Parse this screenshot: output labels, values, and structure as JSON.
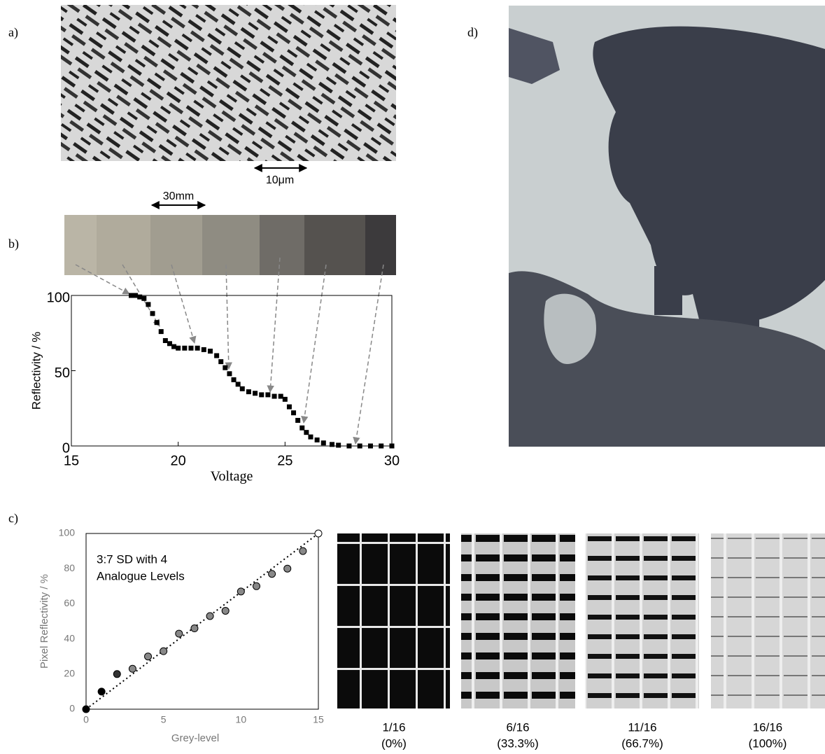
{
  "panel_labels": {
    "a": "a)",
    "b": "b)",
    "c": "c)",
    "d": "d)"
  },
  "scale_bars": {
    "image_a": "10μm",
    "strip_b": "30mm"
  },
  "swatch_labels": [
    {
      "fraction": "1/16",
      "percent": "(0%)"
    },
    {
      "fraction": "6/16",
      "percent": "(33.3%)"
    },
    {
      "fraction": "11/16",
      "percent": "(66.7%)"
    },
    {
      "fraction": "16/16",
      "percent": "(100%)"
    }
  ],
  "chart_data": [
    {
      "type": "scatter",
      "x_label": "Voltage",
      "y_label": "Reflectivity / %",
      "xlim": [
        15,
        30
      ],
      "ylim": [
        0,
        100
      ],
      "xticks": [
        15,
        20,
        25,
        30
      ],
      "yticks": [
        0,
        50,
        100
      ],
      "marker": "square",
      "series": [
        {
          "color": "#000000",
          "x": [
            17.8,
            18.0,
            18.2,
            18.4,
            18.6,
            18.8,
            19.0,
            19.2,
            19.4,
            19.6,
            19.8,
            20.0,
            20.3,
            20.6,
            20.9,
            21.2,
            21.5,
            21.8,
            22.0,
            22.2,
            22.4,
            22.6,
            22.8,
            23.0,
            23.3,
            23.6,
            23.9,
            24.2,
            24.5,
            24.8,
            25.0,
            25.2,
            25.4,
            25.6,
            25.8,
            26.0,
            26.2,
            26.5,
            26.8,
            27.2,
            27.5,
            28.0,
            28.5,
            29.0,
            29.5,
            30.0
          ],
          "values": [
            100,
            100,
            99,
            98,
            94,
            88,
            82,
            76,
            70,
            68,
            66,
            65,
            65,
            65,
            65,
            64,
            63,
            60,
            56,
            52,
            48,
            44,
            41,
            38,
            36,
            35,
            34,
            34,
            33,
            33,
            31,
            26,
            22,
            17,
            12,
            9,
            6,
            4,
            2,
            1,
            0.5,
            0,
            0,
            0,
            0,
            0
          ]
        }
      ]
    },
    {
      "type": "scatter",
      "x_label": "Grey-level",
      "y_label": "Pixel Reflectivity / %",
      "annotation": [
        "3:7 SD  with 4",
        "Analogue Levels"
      ],
      "xlim": [
        0,
        15
      ],
      "ylim": [
        0,
        100
      ],
      "xticks": [
        0,
        5,
        10,
        15
      ],
      "yticks": [
        0,
        20,
        40,
        60,
        80,
        100
      ],
      "marker": "circle",
      "trendline": {
        "x": [
          0,
          15
        ],
        "values": [
          0,
          100
        ]
      },
      "series": [
        {
          "color": "#999999",
          "colors": [
            "#000000",
            "#000000",
            "#333333",
            "#888888",
            "#888888",
            "#888888",
            "#888888",
            "#888888",
            "#888888",
            "#888888",
            "#888888",
            "#888888",
            "#888888",
            "#888888",
            "#888888",
            "#ffffff"
          ],
          "x": [
            0,
            1,
            2,
            3,
            4,
            5,
            6,
            7,
            8,
            9,
            10,
            11,
            12,
            13,
            14,
            15
          ],
          "values": [
            0,
            10,
            20,
            23,
            30,
            33,
            43,
            46,
            53,
            56,
            67,
            70,
            77,
            80,
            90,
            100
          ]
        }
      ]
    }
  ]
}
